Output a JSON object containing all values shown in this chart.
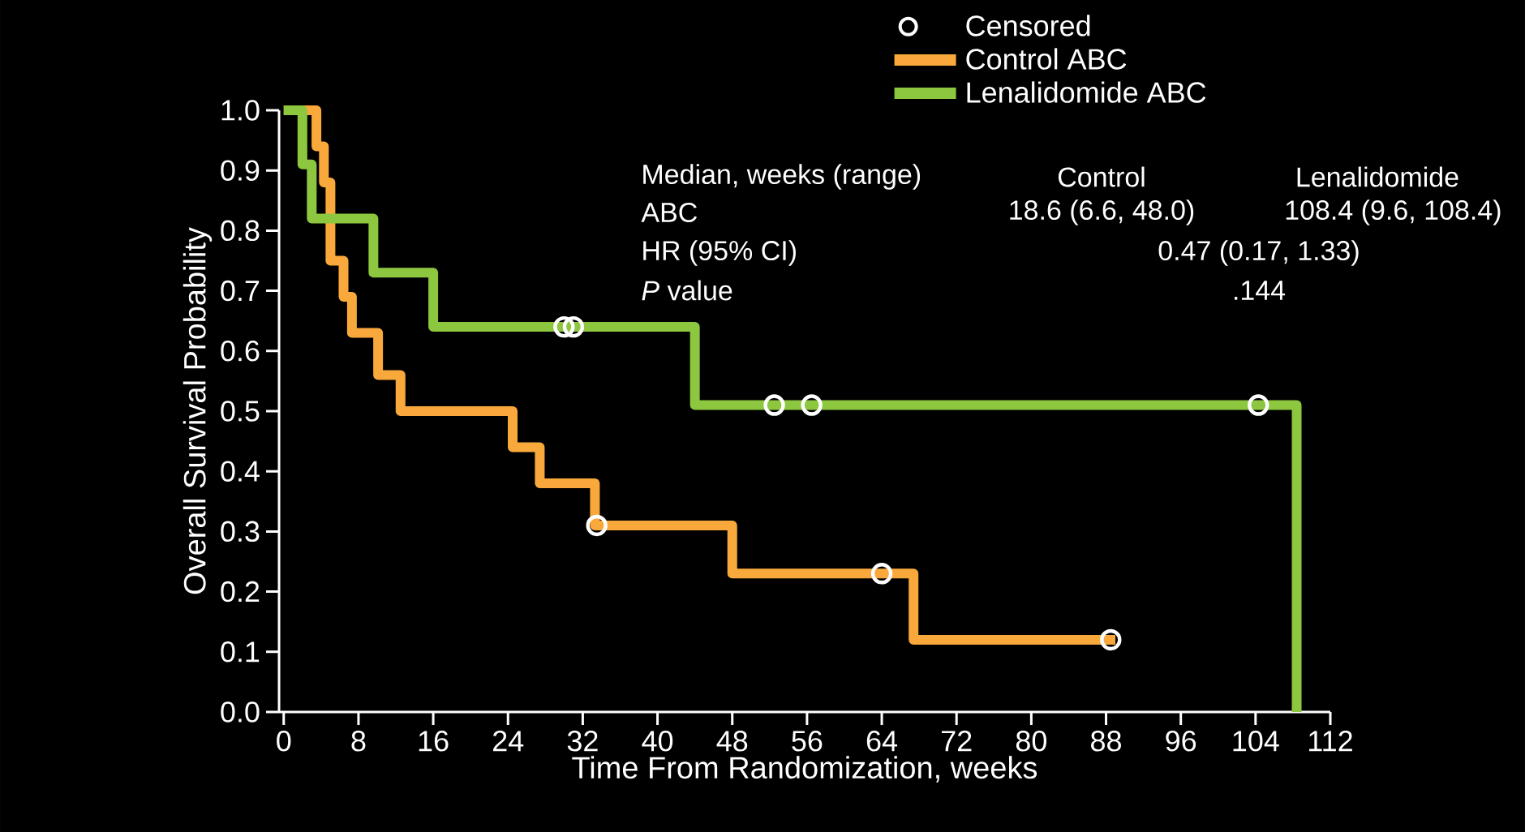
{
  "chart_data": {
    "type": "step",
    "xlabel": "Time From Randomization, weeks",
    "ylabel": "Overall Survival Probability",
    "xlim": [
      -0.5,
      112
    ],
    "ylim": [
      0,
      1.0
    ],
    "xticks": [
      0,
      8,
      16,
      24,
      32,
      40,
      48,
      56,
      64,
      72,
      80,
      88,
      96,
      104,
      112
    ],
    "yticks": [
      {
        "value": 0,
        "label": "0.0"
      },
      0.1,
      0.2,
      0.3,
      0.4,
      0.5,
      0.6,
      0.7,
      0.8,
      0.9,
      {
        "value": 1,
        "label": "1.0"
      }
    ],
    "legend": "top",
    "series": [
      {
        "name": "Censored",
        "type": "scatter",
        "marker": "circle",
        "color": "#ffffff",
        "x": [
          30,
          31,
          52.5,
          56.5,
          104.3,
          33.5,
          64,
          88.5
        ],
        "values": [
          0.64,
          0.64,
          0.51,
          0.51,
          0.51,
          0.31,
          0.23,
          0.12
        ]
      },
      {
        "name": "Control ABC",
        "color": "#f9a93c",
        "x": [
          0,
          3.5,
          4.3,
          5,
          6.4,
          7.3,
          10.1,
          12.5,
          24.5,
          27.4,
          33.3,
          48,
          67.4,
          89
        ],
        "values": [
          1,
          0.94,
          0.88,
          0.75,
          0.69,
          0.63,
          0.56,
          0.5,
          0.44,
          0.38,
          0.31,
          0.23,
          0.12,
          0.12
        ]
      },
      {
        "name": "Lenalidomide ABC",
        "color": "#8dc63f",
        "x": [
          0,
          2,
          3,
          9.6,
          16,
          44,
          108.4,
          108.4
        ],
        "values": [
          1,
          0.91,
          0.82,
          0.73,
          0.64,
          0.51,
          0.51,
          0
        ]
      }
    ],
    "annotations": [
      "Median, weeks (range)",
      "Control",
      "Lenalidomide",
      "ABC",
      "18.6 (6.6, 48.0)",
      "108.4 (9.6, 108.4)",
      "HR (95% CI)",
      "0.47 (0.17, 1.33)",
      "*P* value",
      ".144"
    ]
  }
}
